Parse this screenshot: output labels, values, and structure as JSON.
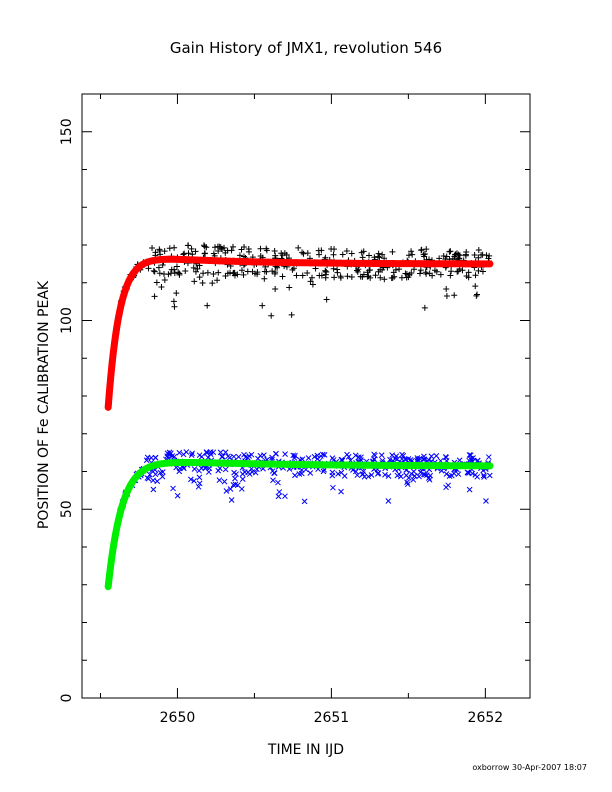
{
  "chart_data": {
    "type": "scatter",
    "title": "Gain History of JMX1, revolution 546",
    "xlabel": "TIME IN IJD",
    "ylabel": "POSITION OF Fe CALIBRATION PEAK",
    "xlim": [
      2649.38,
      2652.29
    ],
    "ylim": [
      0,
      160
    ],
    "x_ticks": [
      2650,
      2651,
      2652
    ],
    "x_tick_labels": [
      "2650",
      "2651",
      "2652"
    ],
    "y_ticks": [
      0,
      50,
      100,
      150
    ],
    "y_tick_labels": [
      "0",
      "50",
      "100",
      "150"
    ],
    "grid": false,
    "legend": "none",
    "x_start": 2649.55,
    "x_end": 2652.03,
    "series": [
      {
        "marker": "plus",
        "color": "#000000",
        "model": {
          "start": 77,
          "plateau": 117.8,
          "tau": 0.075,
          "drift": -0.95,
          "drift_tau": 0.6,
          "final": 115.0
        },
        "scatter_up": 4,
        "scatter_down": 12,
        "count": 430
      },
      {
        "marker": "curve",
        "color": "#ff0000",
        "model": {
          "start": 77,
          "plateau": 117.8,
          "tau": 0.075,
          "drift": -0.95,
          "drift_tau": 0.6,
          "final": 115.0
        }
      },
      {
        "marker": "x",
        "color": "#0000ff",
        "model": {
          "start": 29.5,
          "plateau": 63.5,
          "tau": 0.09,
          "drift": -0.4,
          "drift_tau": 0.8,
          "final": 61.5
        },
        "scatter_up": 3,
        "scatter_down": 8,
        "count": 430
      },
      {
        "marker": "curve",
        "color": "#00ee00",
        "model": {
          "start": 29.5,
          "plateau": 63.5,
          "tau": 0.09,
          "drift": -0.4,
          "drift_tau": 0.8,
          "final": 61.5
        }
      }
    ]
  },
  "footer": "oxborrow 30-Apr-2007 18:07"
}
